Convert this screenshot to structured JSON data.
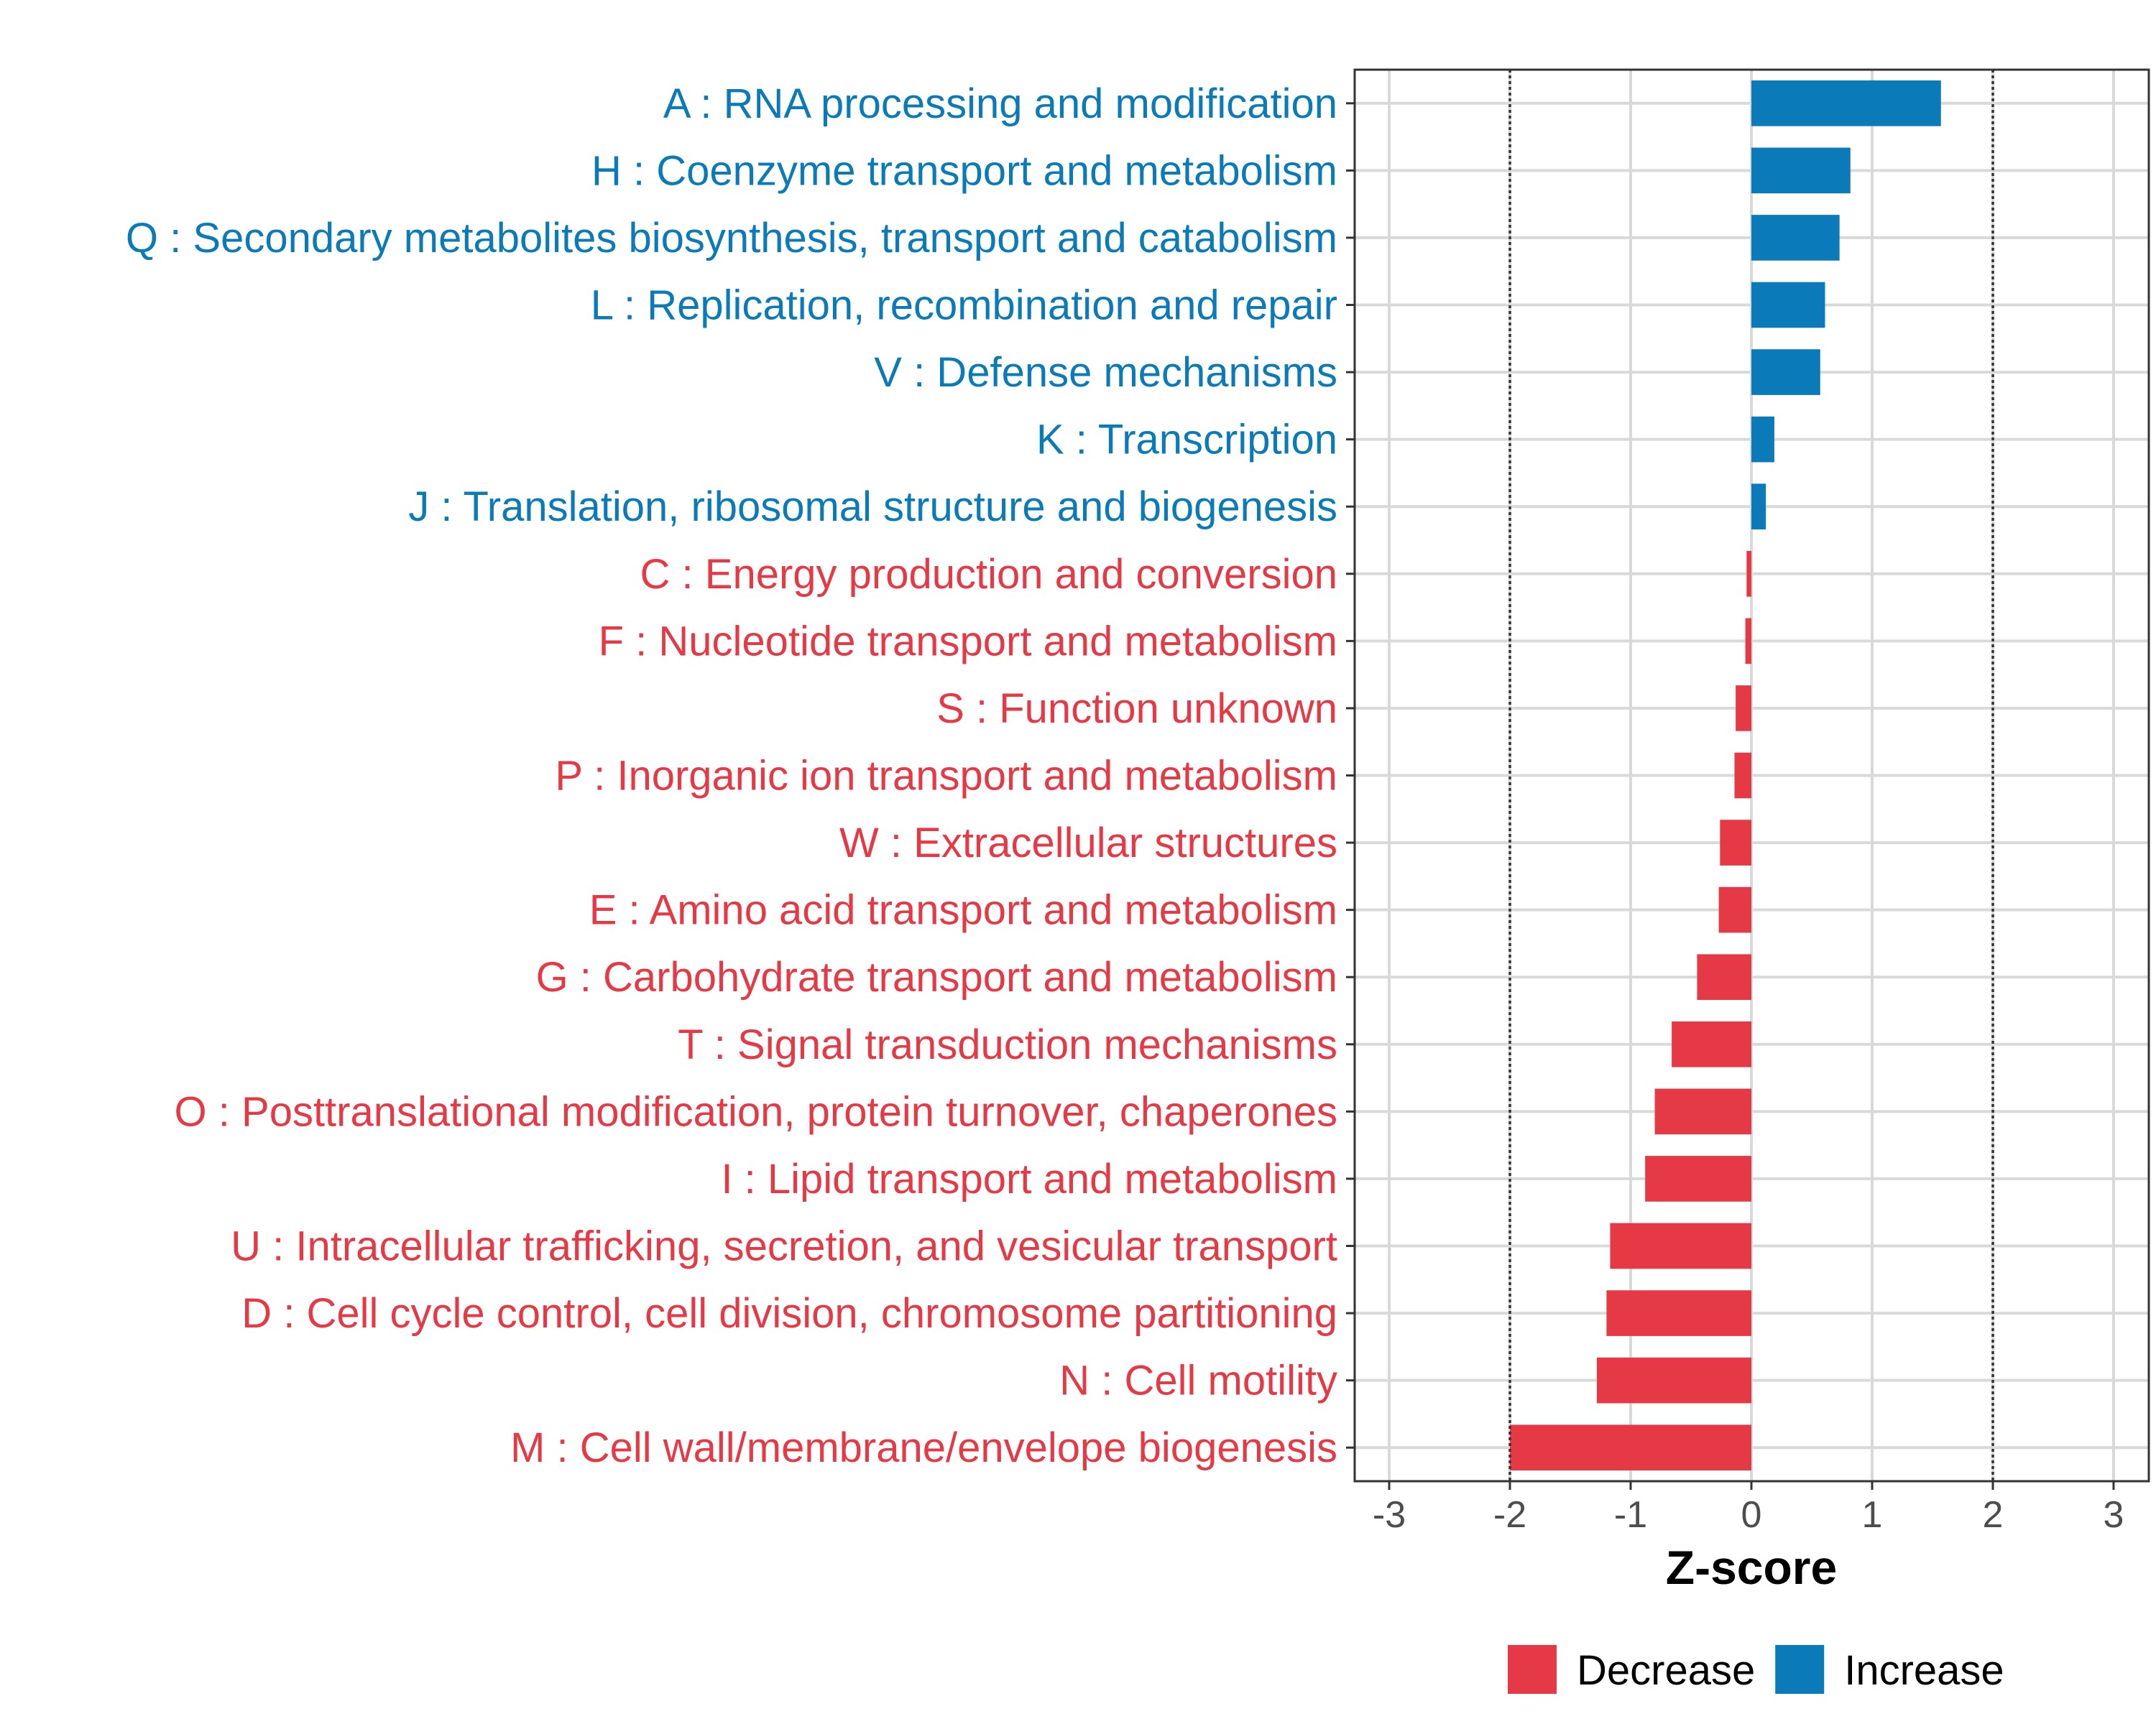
{
  "chart_data": {
    "type": "bar",
    "orientation": "horizontal",
    "title": "",
    "xlabel": "Z-score",
    "ylabel": "",
    "xlim": [
      -3.3,
      3.3
    ],
    "xticks": [
      -3,
      -2,
      -1,
      0,
      1,
      2,
      3
    ],
    "reference_lines": [
      -2,
      2
    ],
    "grid": true,
    "colors": {
      "Decrease": "#e63946",
      "Increase": "#0a7ab8"
    },
    "legend": {
      "position": "bottom",
      "items": [
        "Decrease",
        "Increase"
      ]
    },
    "categories": [
      "A : RNA processing and modification",
      "H : Coenzyme transport and metabolism",
      "Q : Secondary metabolites biosynthesis, transport and catabolism",
      "L : Replication, recombination and repair",
      "V : Defense mechanisms",
      "K : Transcription",
      "J : Translation, ribosomal structure and biogenesis",
      "C : Energy production and conversion",
      "F : Nucleotide transport and metabolism",
      "S : Function unknown",
      "P : Inorganic ion transport and metabolism",
      "W : Extracellular structures",
      "E : Amino acid transport and metabolism",
      "G : Carbohydrate transport and metabolism",
      "T : Signal transduction mechanisms",
      "O : Posttranslational modification, protein turnover, chaperones",
      "I : Lipid transport and metabolism",
      "U : Intracellular trafficking, secretion, and vesicular transport",
      "D : Cell cycle control, cell division, chromosome partitioning",
      "N : Cell motility",
      "M : Cell wall/membrane/envelope biogenesis"
    ],
    "values": [
      1.57,
      0.82,
      0.73,
      0.61,
      0.57,
      0.19,
      0.12,
      -0.04,
      -0.05,
      -0.13,
      -0.14,
      -0.26,
      -0.27,
      -0.45,
      -0.66,
      -0.8,
      -0.88,
      -1.17,
      -1.2,
      -1.28,
      -2.0
    ],
    "groups": [
      "Increase",
      "Increase",
      "Increase",
      "Increase",
      "Increase",
      "Increase",
      "Increase",
      "Decrease",
      "Decrease",
      "Decrease",
      "Decrease",
      "Decrease",
      "Decrease",
      "Decrease",
      "Decrease",
      "Decrease",
      "Decrease",
      "Decrease",
      "Decrease",
      "Decrease",
      "Decrease"
    ]
  }
}
